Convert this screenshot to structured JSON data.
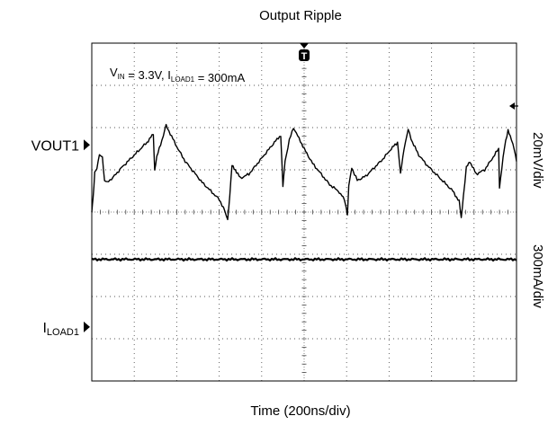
{
  "chart_data": {
    "type": "line",
    "title": "Output Ripple",
    "xlabel": "Time (200ns/div)",
    "annotation": {
      "parts": [
        {
          "text": "V",
          "sub": "IN"
        },
        {
          "text": " = 3.3V, I",
          "sub": "LOAD1"
        },
        {
          "text": " = 300mA",
          "sub": ""
        }
      ]
    },
    "right_labels": [
      "20mV/div",
      "300mA/div"
    ],
    "x_divisions": 10,
    "y_divisions": 8,
    "xlim": [
      0,
      10
    ],
    "ylim": [
      0,
      8
    ],
    "trigger_marker": "T",
    "series": [
      {
        "name": "VOUT1",
        "label_text": "VOUT1",
        "label_sub": "",
        "ground_div": 5.59,
        "color": "#000000",
        "points": [
          [
            0.0,
            4.0
          ],
          [
            0.03,
            4.3
          ],
          [
            0.07,
            4.95
          ],
          [
            0.12,
            5.05
          ],
          [
            0.18,
            5.35
          ],
          [
            0.25,
            5.3
          ],
          [
            0.3,
            4.75
          ],
          [
            0.36,
            4.7
          ],
          [
            0.5,
            4.82
          ],
          [
            0.7,
            5.05
          ],
          [
            0.9,
            5.25
          ],
          [
            1.1,
            5.45
          ],
          [
            1.3,
            5.65
          ],
          [
            1.45,
            5.85
          ],
          [
            1.48,
            5.0
          ],
          [
            1.53,
            5.3
          ],
          [
            1.65,
            5.7
          ],
          [
            1.75,
            6.05
          ],
          [
            1.85,
            5.85
          ],
          [
            2.0,
            5.55
          ],
          [
            2.2,
            5.2
          ],
          [
            2.4,
            4.95
          ],
          [
            2.6,
            4.7
          ],
          [
            2.8,
            4.5
          ],
          [
            3.0,
            4.3
          ],
          [
            3.1,
            4.1
          ],
          [
            3.2,
            3.82
          ],
          [
            3.25,
            4.4
          ],
          [
            3.3,
            5.1
          ],
          [
            3.38,
            5.0
          ],
          [
            3.5,
            4.8
          ],
          [
            3.7,
            4.9
          ],
          [
            3.9,
            5.15
          ],
          [
            4.1,
            5.4
          ],
          [
            4.3,
            5.65
          ],
          [
            4.45,
            5.82
          ],
          [
            4.5,
            4.6
          ],
          [
            4.55,
            5.2
          ],
          [
            4.65,
            5.7
          ],
          [
            4.75,
            6.0
          ],
          [
            4.85,
            5.8
          ],
          [
            5.0,
            5.5
          ],
          [
            5.2,
            5.15
          ],
          [
            5.4,
            4.9
          ],
          [
            5.6,
            4.65
          ],
          [
            5.8,
            4.5
          ],
          [
            5.95,
            4.3
          ],
          [
            6.02,
            3.95
          ],
          [
            6.05,
            4.6
          ],
          [
            6.12,
            5.05
          ],
          [
            6.25,
            4.75
          ],
          [
            6.45,
            4.85
          ],
          [
            6.65,
            5.05
          ],
          [
            6.85,
            5.25
          ],
          [
            7.05,
            5.5
          ],
          [
            7.2,
            5.65
          ],
          [
            7.27,
            4.9
          ],
          [
            7.35,
            5.5
          ],
          [
            7.45,
            5.95
          ],
          [
            7.55,
            5.65
          ],
          [
            7.7,
            5.35
          ],
          [
            7.9,
            5.1
          ],
          [
            8.1,
            4.9
          ],
          [
            8.3,
            4.7
          ],
          [
            8.5,
            4.5
          ],
          [
            8.65,
            4.25
          ],
          [
            8.7,
            3.85
          ],
          [
            8.75,
            4.4
          ],
          [
            8.82,
            5.05
          ],
          [
            8.9,
            5.2
          ],
          [
            9.05,
            4.9
          ],
          [
            9.25,
            5.0
          ],
          [
            9.45,
            5.3
          ],
          [
            9.58,
            5.5
          ],
          [
            9.6,
            4.6
          ],
          [
            9.65,
            5.0
          ],
          [
            9.72,
            5.55
          ],
          [
            9.8,
            5.95
          ],
          [
            9.88,
            5.7
          ],
          [
            9.95,
            5.5
          ],
          [
            10.0,
            5.2
          ]
        ]
      },
      {
        "name": "ILOAD1",
        "label_text": "I",
        "label_sub": "LOAD1",
        "ground_div": 1.28,
        "color": "#000000",
        "points": [
          [
            0,
            2.88
          ],
          [
            10,
            2.88
          ]
        ]
      }
    ],
    "grid": true
  }
}
